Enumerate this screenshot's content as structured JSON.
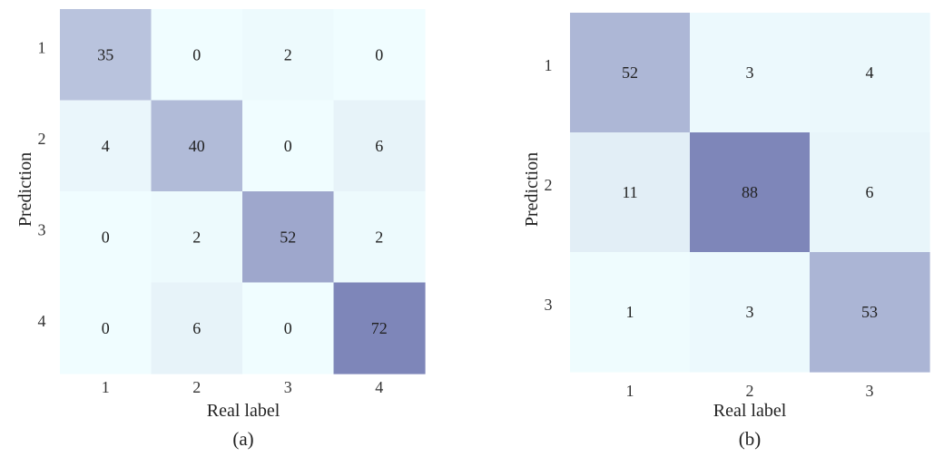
{
  "chart_data": [
    {
      "type": "heatmap",
      "caption": "(a)",
      "xlabel": "Real label",
      "ylabel": "Prediction",
      "x_ticks": [
        "1",
        "2",
        "3",
        "4"
      ],
      "y_ticks": [
        "1",
        "2",
        "3",
        "4"
      ],
      "matrix": [
        [
          35,
          0,
          2,
          0
        ],
        [
          4,
          40,
          0,
          6
        ],
        [
          0,
          2,
          52,
          2
        ],
        [
          0,
          6,
          0,
          72
        ]
      ],
      "color_min": "#f0fdff",
      "color_max": "#7e86b9",
      "vmax": 72
    },
    {
      "type": "heatmap",
      "caption": "(b)",
      "xlabel": "Real label",
      "ylabel": "Prediction",
      "x_ticks": [
        "1",
        "2",
        "3"
      ],
      "y_ticks": [
        "1",
        "2",
        "3"
      ],
      "matrix": [
        [
          52,
          3,
          4
        ],
        [
          11,
          88,
          6
        ],
        [
          1,
          3,
          53
        ]
      ],
      "color_min": "#f0fdff",
      "color_max": "#7e86b9",
      "vmax": 88
    }
  ]
}
